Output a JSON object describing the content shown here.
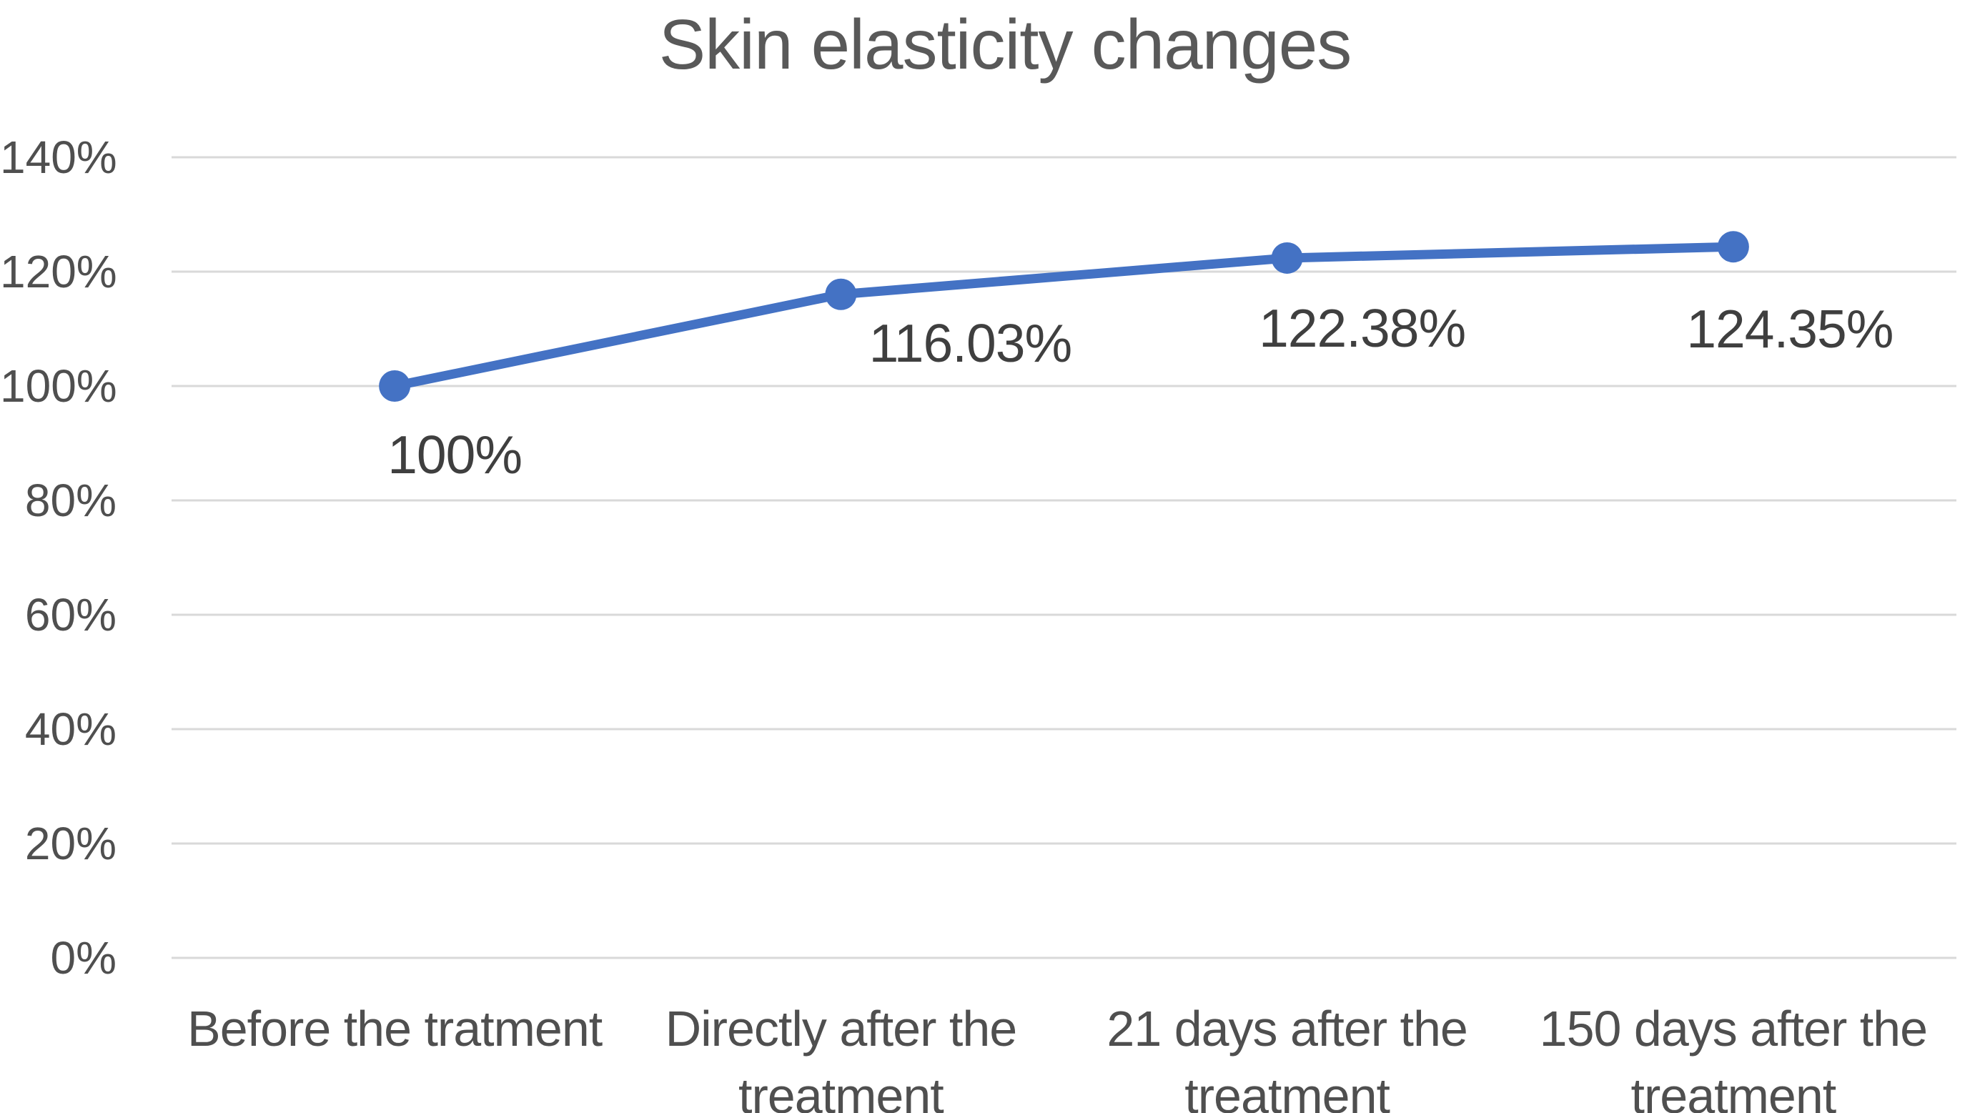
{
  "chart_data": {
    "type": "line",
    "title": "Skin elasticity changes",
    "categories": [
      "Before the tratment",
      "Directly after the treatment",
      "21 days after the treatment",
      "150 days after the treatment"
    ],
    "values": [
      100,
      116.03,
      122.38,
      124.35
    ],
    "data_labels": [
      "100%",
      "116.03%",
      "122.38%",
      "124.35%"
    ],
    "y_ticks": [
      "0%",
      "20%",
      "40%",
      "60%",
      "80%",
      "100%",
      "120%",
      "140%"
    ],
    "ylim": [
      0,
      140
    ],
    "y_tick_step_percent": 20,
    "grid": "horizontal-on",
    "legend_position": "none",
    "marker": "circle",
    "xlabel": "",
    "ylabel": "",
    "colors": {
      "line": "#4472C4",
      "marker": "#4472C4",
      "gridline": "#D9D9D9",
      "title_text": "#595959",
      "axis_text": "#4F4F4F",
      "data_label_text": "#3F3F3F",
      "background": "#FFFFFF"
    }
  }
}
